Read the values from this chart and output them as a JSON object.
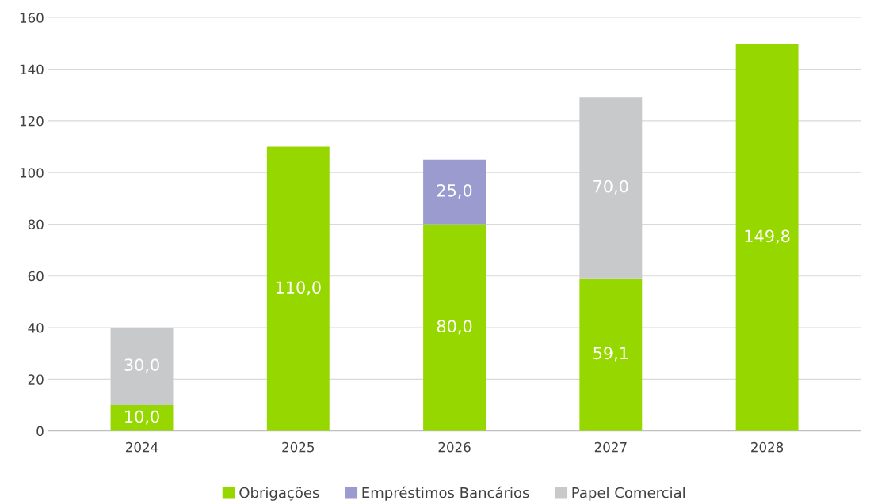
{
  "chart_data": {
    "type": "bar",
    "stacked": true,
    "categories": [
      "2024",
      "2025",
      "2026",
      "2027",
      "2028"
    ],
    "series": [
      {
        "name": "Obrigações",
        "color": "#97d700",
        "values": [
          10.0,
          110.0,
          80.0,
          59.1,
          149.8
        ],
        "value_labels": [
          "10,0",
          "110,0",
          "80,0",
          "59,1",
          "149,8"
        ]
      },
      {
        "name": "Empréstimos Bancários",
        "color": "#9b9bcf",
        "values": [
          null,
          null,
          25.0,
          null,
          null
        ],
        "value_labels": [
          null,
          null,
          "25,0",
          null,
          null
        ]
      },
      {
        "name": "Papel Comercial",
        "color": "#c8c9cb",
        "values": [
          30.0,
          null,
          null,
          70.0,
          null
        ],
        "value_labels": [
          "30,0",
          null,
          null,
          "70,0",
          null
        ]
      }
    ],
    "ylim": [
      0,
      160
    ],
    "yticks": [
      0,
      20,
      40,
      60,
      80,
      100,
      120,
      140,
      160
    ],
    "grid": "y",
    "legend": "bottom"
  }
}
